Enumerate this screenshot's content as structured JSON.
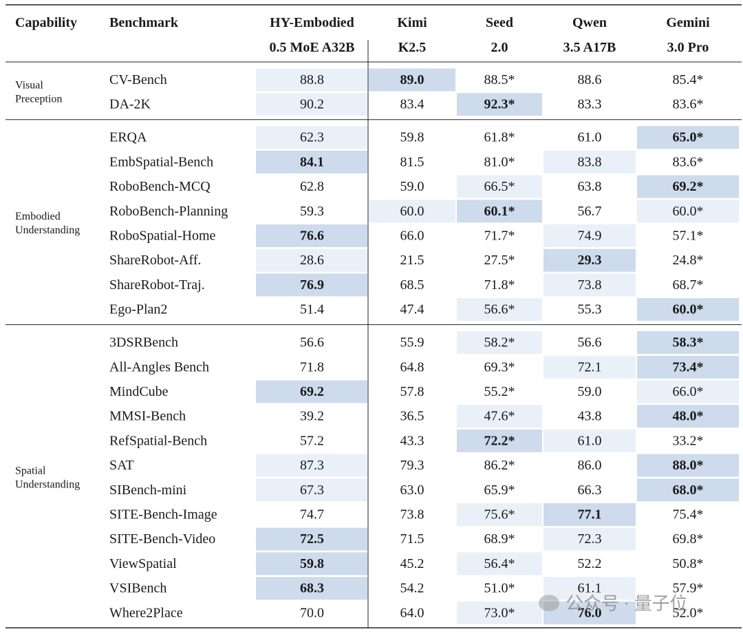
{
  "table": {
    "columns": [
      {
        "name": "Capability"
      },
      {
        "name": "Benchmark"
      },
      {
        "name": "HY-Embodied",
        "sub": "0.5 MoE A32B"
      },
      {
        "name": "Kimi",
        "sub": "K2.5"
      },
      {
        "name": "Seed",
        "sub": "2.0"
      },
      {
        "name": "Qwen",
        "sub": "3.5 A17B"
      },
      {
        "name": "Gemini",
        "sub": "3.0 Pro"
      }
    ],
    "groups": [
      {
        "capability": [
          "Visual",
          "Preception"
        ],
        "rows": [
          {
            "benchmark": "CV-Bench",
            "scores": [
              "88.8",
              "89.0",
              "88.5*",
              "88.6",
              "85.4*"
            ],
            "best": 1,
            "second": [
              0
            ]
          },
          {
            "benchmark": "DA-2K",
            "scores": [
              "90.2",
              "83.4",
              "92.3*",
              "83.3",
              "83.6*"
            ],
            "best": 2,
            "second": [
              0
            ]
          }
        ]
      },
      {
        "capability": [
          "Embodied",
          "Understanding"
        ],
        "rows": [
          {
            "benchmark": "ERQA",
            "scores": [
              "62.3",
              "59.8",
              "61.8*",
              "61.0",
              "65.0*"
            ],
            "best": 4,
            "second": [
              0
            ]
          },
          {
            "benchmark": "EmbSpatial-Bench",
            "scores": [
              "84.1",
              "81.5",
              "81.0*",
              "83.8",
              "83.6*"
            ],
            "best": 0,
            "second": [
              3
            ]
          },
          {
            "benchmark": "RoboBench-MCQ",
            "scores": [
              "62.8",
              "59.0",
              "66.5*",
              "63.8",
              "69.2*"
            ],
            "best": 4,
            "second": [
              2
            ]
          },
          {
            "benchmark": "RoboBench-Planning",
            "scores": [
              "59.3",
              "60.0",
              "60.1*",
              "56.7",
              "60.0*"
            ],
            "best": 2,
            "second": [
              1,
              4
            ]
          },
          {
            "benchmark": "RoboSpatial-Home",
            "scores": [
              "76.6",
              "66.0",
              "71.7*",
              "74.9",
              "57.1*"
            ],
            "best": 0,
            "second": [
              3
            ]
          },
          {
            "benchmark": "ShareRobot-Aff.",
            "scores": [
              "28.6",
              "21.5",
              "27.5*",
              "29.3",
              "24.8*"
            ],
            "best": 3,
            "second": [
              0
            ]
          },
          {
            "benchmark": "ShareRobot-Traj.",
            "scores": [
              "76.9",
              "68.5",
              "71.8*",
              "73.8",
              "68.7*"
            ],
            "best": 0,
            "second": [
              3
            ]
          },
          {
            "benchmark": "Ego-Plan2",
            "scores": [
              "51.4",
              "47.4",
              "56.6*",
              "55.3",
              "60.0*"
            ],
            "best": 4,
            "second": [
              2
            ]
          }
        ]
      },
      {
        "capability": [
          "Spatial",
          "Understanding"
        ],
        "rows": [
          {
            "benchmark": "3DSRBench",
            "scores": [
              "56.6",
              "55.9",
              "58.2*",
              "56.6",
              "58.3*"
            ],
            "best": 4,
            "second": [
              2
            ]
          },
          {
            "benchmark": "All-Angles Bench",
            "scores": [
              "71.8",
              "64.8",
              "69.3*",
              "72.1",
              "73.4*"
            ],
            "best": 4,
            "second": [
              3
            ]
          },
          {
            "benchmark": "MindCube",
            "scores": [
              "69.2",
              "57.8",
              "55.2*",
              "59.0",
              "66.0*"
            ],
            "best": 0,
            "second": [
              4
            ]
          },
          {
            "benchmark": "MMSI-Bench",
            "scores": [
              "39.2",
              "36.5",
              "47.6*",
              "43.8",
              "48.0*"
            ],
            "best": 4,
            "second": [
              2
            ]
          },
          {
            "benchmark": "RefSpatial-Bench",
            "scores": [
              "57.2",
              "43.3",
              "72.2*",
              "61.0",
              "33.2*"
            ],
            "best": 2,
            "second": [
              3
            ]
          },
          {
            "benchmark": "SAT",
            "scores": [
              "87.3",
              "79.3",
              "86.2*",
              "86.0",
              "88.0*"
            ],
            "best": 4,
            "second": [
              0
            ]
          },
          {
            "benchmark": "SIBench-mini",
            "scores": [
              "67.3",
              "63.0",
              "65.9*",
              "66.3",
              "68.0*"
            ],
            "best": 4,
            "second": [
              0
            ]
          },
          {
            "benchmark": "SITE-Bench-Image",
            "scores": [
              "74.7",
              "73.8",
              "75.6*",
              "77.1",
              "75.4*"
            ],
            "best": 3,
            "second": [
              2
            ]
          },
          {
            "benchmark": "SITE-Bench-Video",
            "scores": [
              "72.5",
              "71.5",
              "68.9*",
              "72.3",
              "69.8*"
            ],
            "best": 0,
            "second": [
              3
            ]
          },
          {
            "benchmark": "ViewSpatial",
            "scores": [
              "59.8",
              "45.2",
              "56.4*",
              "52.2",
              "50.8*"
            ],
            "best": 0,
            "second": [
              2
            ]
          },
          {
            "benchmark": "VSIBench",
            "scores": [
              "68.3",
              "54.2",
              "51.0*",
              "61.1",
              "57.9*"
            ],
            "best": 0,
            "second": [
              3
            ]
          },
          {
            "benchmark": "Where2Place",
            "scores": [
              "70.0",
              "64.0",
              "73.0*",
              "76.0",
              "52.0*"
            ],
            "best": 3,
            "second": [
              2
            ]
          }
        ]
      }
    ],
    "watermark": "公众号 · 量子位"
  }
}
